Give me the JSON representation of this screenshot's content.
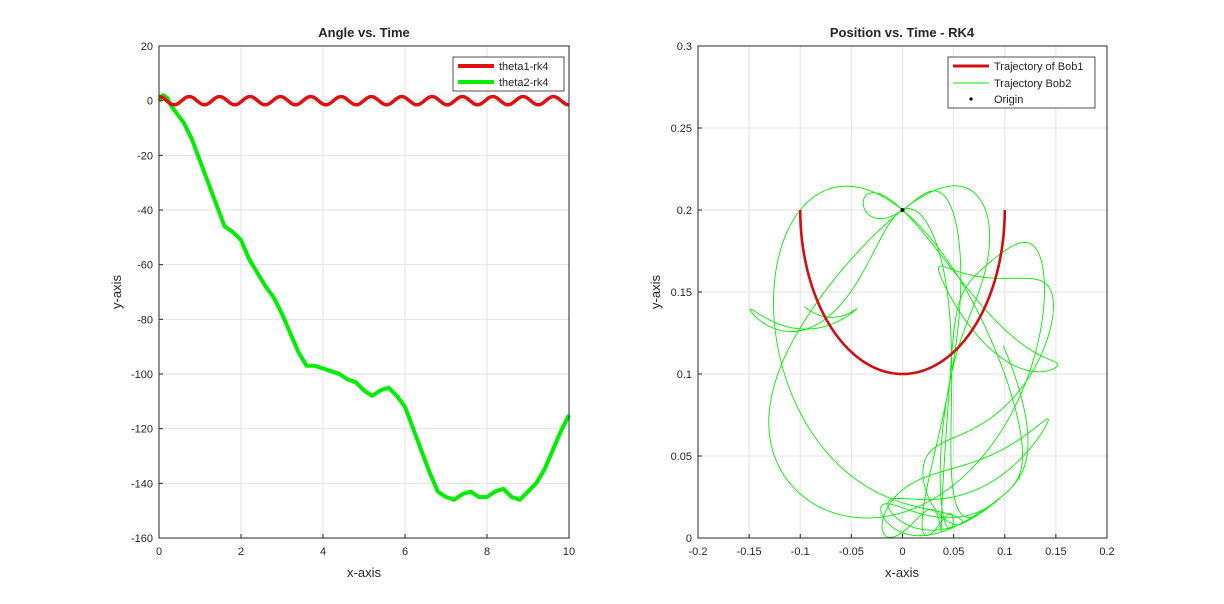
{
  "chart_data": [
    {
      "type": "line",
      "title": "Angle vs. Time",
      "xlabel": "x-axis",
      "ylabel": "y-axis",
      "xlim": [
        0,
        10
      ],
      "ylim": [
        -160,
        20
      ],
      "xticks": [
        0,
        2,
        4,
        6,
        8,
        10
      ],
      "yticks": [
        20,
        0,
        -20,
        -40,
        -60,
        -80,
        -100,
        -120,
        -140,
        -160
      ],
      "grid": true,
      "legend_position": "top-right",
      "series": [
        {
          "name": "theta1-rk4",
          "color": "#e01010",
          "kind": "oscillation",
          "amplitude": 1.5,
          "period": 0.74,
          "x_range": [
            0,
            10
          ]
        },
        {
          "name": "theta2-rk4",
          "color": "#00ee00",
          "x": [
            0,
            0.1,
            0.2,
            0.3,
            0.4,
            0.6,
            0.8,
            1.0,
            1.2,
            1.4,
            1.6,
            1.8,
            2.0,
            2.2,
            2.4,
            2.6,
            2.8,
            3.0,
            3.2,
            3.4,
            3.6,
            3.8,
            4.0,
            4.2,
            4.4,
            4.6,
            4.8,
            5.0,
            5.2,
            5.4,
            5.6,
            5.8,
            6.0,
            6.2,
            6.4,
            6.6,
            6.8,
            7.0,
            7.2,
            7.4,
            7.6,
            7.8,
            8.0,
            8.2,
            8.4,
            8.6,
            8.8,
            9.0,
            9.2,
            9.4,
            9.6,
            9.8,
            10.0
          ],
          "y": [
            0,
            2,
            1,
            -2,
            -4,
            -8,
            -14,
            -22,
            -30,
            -38,
            -46,
            -48,
            -51,
            -58,
            -63,
            -68,
            -72,
            -78,
            -85,
            -92,
            -97,
            -97,
            -98,
            -99,
            -100,
            -102,
            -103,
            -106,
            -108,
            -106,
            -105,
            -108,
            -112,
            -120,
            -128,
            -136,
            -143,
            -145,
            -146,
            -144,
            -143,
            -145,
            -145,
            -143,
            -142,
            -145,
            -146,
            -143,
            -140,
            -135,
            -128,
            -121,
            -115
          ]
        }
      ]
    },
    {
      "type": "line",
      "title": "Position vs. Time - RK4",
      "xlabel": "x-axis",
      "ylabel": "y-axis",
      "xlim": [
        -0.2,
        0.2
      ],
      "ylim": [
        0,
        0.3
      ],
      "xticks": [
        -0.2,
        -0.15,
        -0.1,
        -0.05,
        0,
        0.05,
        0.1,
        0.15,
        0.2
      ],
      "yticks": [
        0.3,
        0.25,
        0.2,
        0.15,
        0.1,
        0.05,
        0
      ],
      "grid": true,
      "legend_position": "top-right",
      "series": [
        {
          "name": "Trajectory of Bob1",
          "color": "#d01010",
          "kind": "arc",
          "center": [
            0,
            0.2
          ],
          "radius": 0.1,
          "angle_range_deg": [
            -90,
            90
          ]
        },
        {
          "name": "Trajectory Bob2",
          "color": "#00ee00",
          "kind": "chaotic-path",
          "pivot": [
            0,
            0.2
          ],
          "arm_lengths": [
            0.1,
            0.1
          ]
        },
        {
          "name": "Origin",
          "color": "#000000",
          "kind": "point",
          "x": [
            0
          ],
          "y": [
            0.2
          ]
        }
      ]
    }
  ]
}
